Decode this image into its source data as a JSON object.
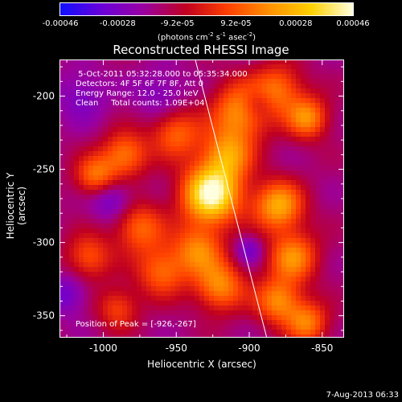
{
  "colorbar": {
    "ticks": [
      "-0.00046",
      "-0.00028",
      "-9.2e-05",
      "9.2e-05",
      "0.00028",
      "0.00046"
    ],
    "tick_values": [
      -0.00046,
      -0.00028,
      -9.2e-05,
      9.2e-05,
      0.00028,
      0.00046
    ],
    "units_prefix": "(photons cm",
    "units_exp1": "-2",
    "units_mid1": " s",
    "units_exp2": "-1",
    "units_mid2": " asec",
    "units_exp3": "-2",
    "units_suffix": ")",
    "gradient_colors": [
      "#1010ff",
      "#6a00d8",
      "#9a00a0",
      "#c00020",
      "#ff4000",
      "#ff9000",
      "#ffd000",
      "#ffffe0"
    ]
  },
  "title": "Reconstructed RHESSI Image",
  "annotation": {
    "line1": " 5-Oct-2011 05:32:28.000 to 05:35:34.000",
    "line2": "Detectors: 4F 5F 6F 7F 8F, Att 0",
    "line3": "Energy Range: 12.0 - 25.0 keV",
    "line4": "Clean     Total counts: 1.09E+04"
  },
  "peak_text": "Position of Peak = [-926,-267]",
  "timestamp": "7-Aug-2013 06:33",
  "chart_data": {
    "type": "heatmap",
    "title": "Reconstructed RHESSI Image",
    "xlabel": "Heliocentric X (arcsec)",
    "ylabel": "Heliocentric Y (arcsec)",
    "xlim": [
      -1030,
      -835
    ],
    "ylim": [
      -365,
      -175
    ],
    "x_ticks": [
      -1000,
      -950,
      -900,
      -850
    ],
    "x_tick_labels": [
      "-1000",
      "-950",
      "-900",
      "-850"
    ],
    "y_ticks": [
      -350,
      -300,
      -250,
      -200
    ],
    "y_tick_labels": [
      "-350",
      "-300",
      "-250",
      "-200"
    ],
    "value_range": [
      -0.00046,
      0.00046
    ],
    "peak": {
      "x": -926,
      "y": -267
    },
    "limb_line": [
      {
        "x": -937,
        "y": -175
      },
      {
        "x": -888,
        "y": -365
      }
    ],
    "sources": [
      {
        "x": -926,
        "y": -267,
        "amp": 1.0,
        "sigma": 14
      },
      {
        "x": -915,
        "y": -240,
        "amp": 0.55,
        "sigma": 12
      },
      {
        "x": -905,
        "y": -210,
        "amp": 0.6,
        "sigma": 14
      },
      {
        "x": -880,
        "y": -195,
        "amp": 0.45,
        "sigma": 12
      },
      {
        "x": -860,
        "y": -215,
        "amp": 0.55,
        "sigma": 10
      },
      {
        "x": -950,
        "y": -225,
        "amp": 0.45,
        "sigma": 12
      },
      {
        "x": -985,
        "y": -240,
        "amp": 0.5,
        "sigma": 11
      },
      {
        "x": -1005,
        "y": -255,
        "amp": 0.5,
        "sigma": 10
      },
      {
        "x": -975,
        "y": -290,
        "amp": 0.45,
        "sigma": 12
      },
      {
        "x": -960,
        "y": -320,
        "amp": 0.45,
        "sigma": 12
      },
      {
        "x": -1010,
        "y": -310,
        "amp": 0.4,
        "sigma": 11
      },
      {
        "x": -935,
        "y": -305,
        "amp": 0.5,
        "sigma": 12
      },
      {
        "x": -920,
        "y": -330,
        "amp": 0.55,
        "sigma": 12
      },
      {
        "x": -880,
        "y": -275,
        "amp": 0.65,
        "sigma": 12
      },
      {
        "x": -870,
        "y": -310,
        "amp": 0.55,
        "sigma": 12
      },
      {
        "x": -880,
        "y": -340,
        "amp": 0.55,
        "sigma": 11
      },
      {
        "x": -860,
        "y": -355,
        "amp": 0.5,
        "sigma": 10
      },
      {
        "x": -990,
        "y": -345,
        "amp": 0.35,
        "sigma": 10
      },
      {
        "x": -1015,
        "y": -200,
        "amp": -0.2,
        "sigma": 12
      },
      {
        "x": -960,
        "y": -200,
        "amp": -0.2,
        "sigma": 12
      },
      {
        "x": -895,
        "y": -205,
        "amp": -0.3,
        "sigma": 8
      },
      {
        "x": -995,
        "y": -270,
        "amp": -0.3,
        "sigma": 10
      },
      {
        "x": -1025,
        "y": -335,
        "amp": -0.25,
        "sigma": 10
      },
      {
        "x": -900,
        "y": -305,
        "amp": -0.25,
        "sigma": 7
      }
    ]
  }
}
